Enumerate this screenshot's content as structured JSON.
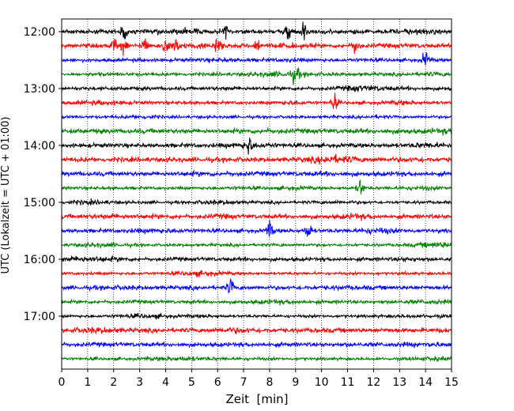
{
  "chart_data": {
    "type": "line",
    "title": "",
    "xlabel": "Zeit  [min]",
    "ylabel": "UTC (Lokalzeit = UTC + 01:00)",
    "xlim": [
      0,
      15
    ],
    "x_ticks": [
      "0",
      "1",
      "2",
      "3",
      "4",
      "5",
      "6",
      "7",
      "8",
      "9",
      "10",
      "11",
      "12",
      "13",
      "14",
      "15"
    ],
    "y_tick_labels": [
      "12:00",
      "13:00",
      "14:00",
      "15:00",
      "16:00",
      "17:00"
    ],
    "trace_interval_minutes": 15,
    "trace_start": "12:00",
    "trace_count": 24,
    "trace_colors": [
      "#000000",
      "#ff0000",
      "#0000ff",
      "#008000"
    ],
    "vertical_grid": true,
    "grid_style": "dotted",
    "notable_events": [
      {
        "trace": "12:00",
        "minutes": [
          2.4,
          6.3,
          8.7,
          9.3
        ]
      },
      {
        "trace": "12:15",
        "minutes": [
          2.0,
          2.4,
          3.2,
          4.0,
          4.4,
          6.0,
          7.5,
          11.3
        ]
      },
      {
        "trace": "12:30",
        "minutes": [
          14.0
        ]
      },
      {
        "trace": "12:45",
        "minutes": [
          9.0
        ]
      },
      {
        "trace": "13:15",
        "minutes": [
          10.5
        ]
      },
      {
        "trace": "14:00",
        "minutes": [
          7.2
        ]
      },
      {
        "trace": "14:45",
        "minutes": [
          11.5
        ]
      },
      {
        "trace": "15:30",
        "minutes": [
          8.0,
          9.5
        ]
      },
      {
        "trace": "16:30",
        "minutes": [
          6.5
        ]
      }
    ]
  }
}
